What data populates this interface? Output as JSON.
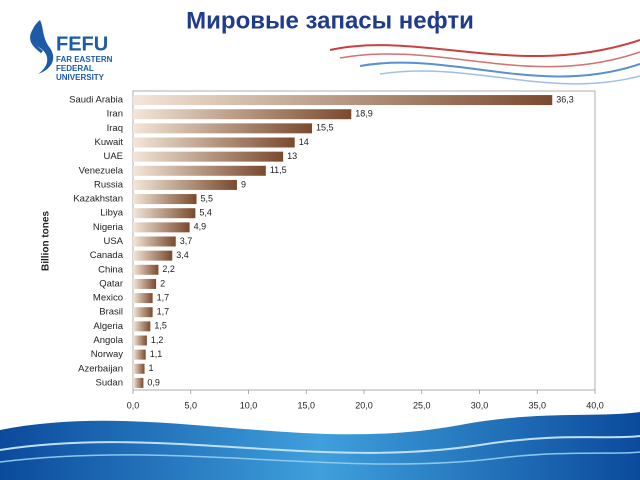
{
  "logo": {
    "mark": "FEFU",
    "lines": [
      "FAR EASTERN",
      "FEDERAL",
      "UNIVERSITY"
    ]
  },
  "chart_data": {
    "type": "bar",
    "orientation": "horizontal",
    "title": "Мировые запасы нефти",
    "ylabel": "Billion tones",
    "categories": [
      "Saudi Arabia",
      "Iran",
      "Iraq",
      "Kuwait",
      "UAE",
      "Venezuela",
      "Russia",
      "Kazakhstan",
      "Libya",
      "Nigeria",
      "USA",
      "Canada",
      "China",
      "Qatar",
      "Mexico",
      "Brasil",
      "Algeria",
      "Angola",
      "Norway",
      "Azerbaijan",
      "Sudan"
    ],
    "values": [
      36.3,
      18.9,
      15.5,
      14,
      13,
      11.5,
      9,
      5.5,
      5.4,
      4.9,
      3.7,
      3.4,
      2.2,
      2,
      1.7,
      1.7,
      1.5,
      1.2,
      1.1,
      1,
      0.9
    ],
    "value_labels": [
      "36,3",
      "18,9",
      "15,5",
      "14",
      "13",
      "11,5",
      "9",
      "5,5",
      "5,4",
      "4,9",
      "3,7",
      "3,4",
      "2,2",
      "2",
      "1,7",
      "1,7",
      "1,5",
      "1,2",
      "1,1",
      "1",
      "0,9"
    ],
    "color": "#7a4a2e",
    "xlim": [
      0,
      40
    ],
    "xticks": [
      {
        "value": 0,
        "label": "0,0"
      },
      {
        "value": 5,
        "label": "5,0"
      },
      {
        "value": 10,
        "label": "10,0"
      },
      {
        "value": 15,
        "label": "15,0"
      },
      {
        "value": 20,
        "label": "20,0"
      },
      {
        "value": 25,
        "label": "25,0"
      },
      {
        "value": 30,
        "label": "30,0"
      },
      {
        "value": 35,
        "label": "35,0"
      },
      {
        "value": 40,
        "label": "40,0"
      }
    ]
  }
}
